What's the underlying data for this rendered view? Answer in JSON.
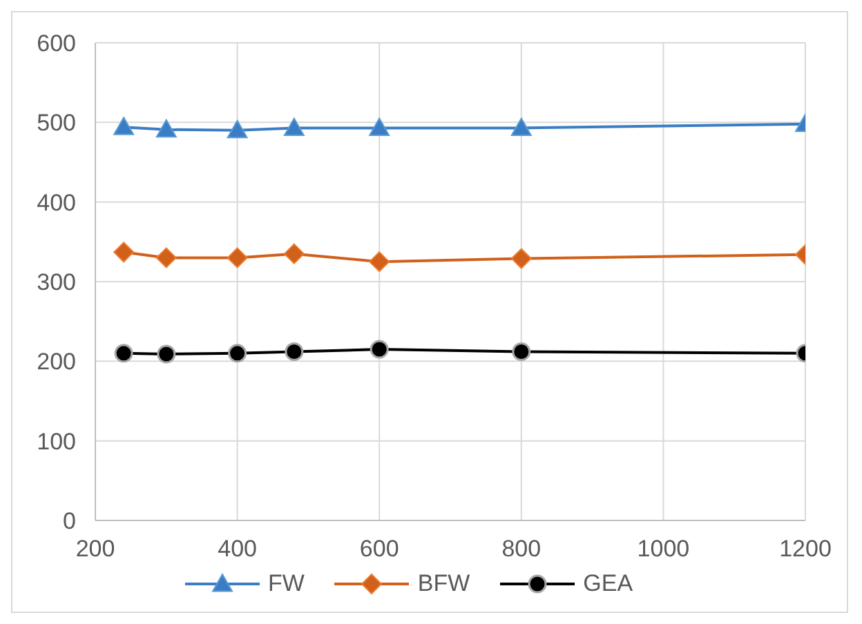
{
  "chart_data": {
    "type": "line",
    "x": [
      240,
      300,
      400,
      480,
      600,
      800,
      1200
    ],
    "series": [
      {
        "name": "FW",
        "color": "#3b7dc4",
        "marker": "triangle",
        "values": [
          494,
          491,
          490,
          493,
          493,
          493,
          498
        ]
      },
      {
        "name": "BFW",
        "color": "#d0601a",
        "marker": "diamond",
        "values": [
          337,
          330,
          330,
          335,
          325,
          329,
          334
        ]
      },
      {
        "name": "GEA",
        "color": "#000000",
        "marker": "circle",
        "values": [
          210,
          209,
          210,
          212,
          215,
          212,
          210
        ]
      }
    ],
    "xlim": [
      200,
      1200
    ],
    "xticks": [
      200,
      400,
      600,
      800,
      1000,
      1200
    ],
    "ylim": [
      0,
      600
    ],
    "yticks": [
      0,
      100,
      200,
      300,
      400,
      500,
      600
    ],
    "grid": true,
    "legend": "bottom",
    "line_style": "solid"
  }
}
